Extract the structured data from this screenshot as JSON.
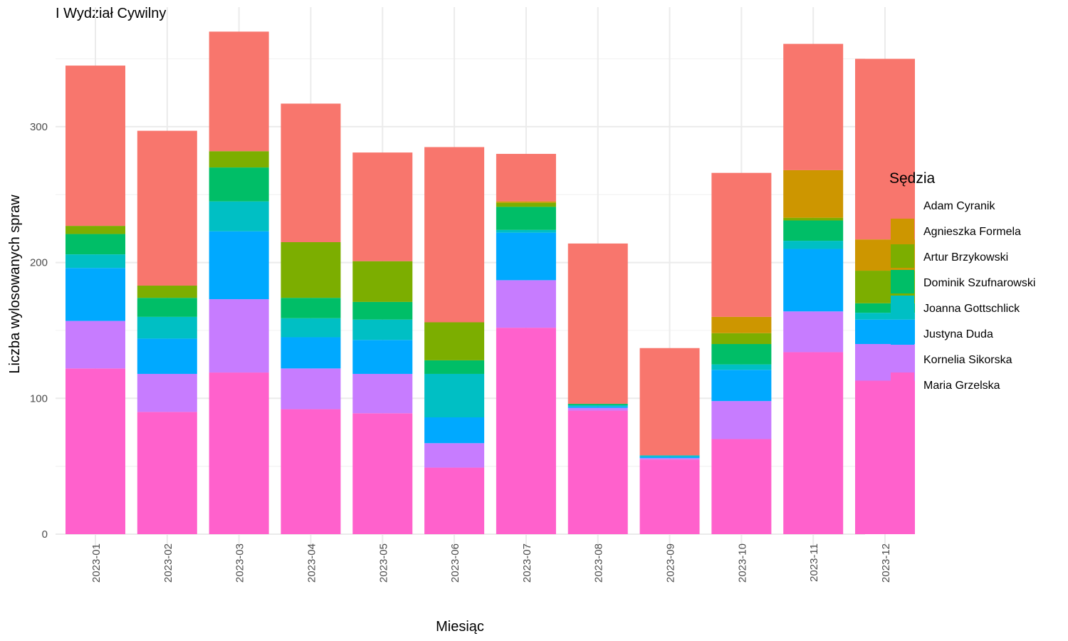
{
  "chart_data": {
    "type": "bar",
    "stacked": true,
    "title": "I Wydział Cywilny",
    "xlabel": "Miesiąc",
    "ylabel": "Liczba wylosowanych spraw",
    "ylim": [
      0,
      380
    ],
    "yticks": [
      0,
      100,
      200,
      300
    ],
    "grid": true,
    "legend_title": "Sędzia",
    "legend_position": "right",
    "categories": [
      "2023-01",
      "2023-02",
      "2023-03",
      "2023-04",
      "2023-05",
      "2023-06",
      "2023-07",
      "2023-08",
      "2023-09",
      "2023-10",
      "2023-11",
      "2023-12"
    ],
    "series": [
      {
        "name": "Maria Grzelska",
        "color": "#FF61CC",
        "values": [
          122,
          90,
          119,
          92,
          89,
          49,
          152,
          91,
          55,
          70,
          134,
          113
        ]
      },
      {
        "name": "Kornelia Sikorska",
        "color": "#C77CFF",
        "values": [
          35,
          28,
          54,
          30,
          29,
          18,
          35,
          2,
          1,
          28,
          30,
          27
        ]
      },
      {
        "name": "Justyna Duda",
        "color": "#00A9FF",
        "values": [
          39,
          26,
          50,
          23,
          25,
          19,
          35,
          1,
          1,
          23,
          46,
          18
        ]
      },
      {
        "name": "Joanna Gottschlick",
        "color": "#00BFC4",
        "values": [
          10,
          16,
          22,
          14,
          15,
          32,
          2,
          1,
          1,
          4,
          6,
          5
        ]
      },
      {
        "name": "Dominik Szufnarowski",
        "color": "#00BE67",
        "values": [
          15,
          14,
          25,
          15,
          13,
          10,
          17,
          1,
          0,
          15,
          15,
          7
        ]
      },
      {
        "name": "Artur Brzykowski",
        "color": "#7CAE00",
        "values": [
          6,
          9,
          12,
          41,
          30,
          28,
          3,
          0,
          0,
          8,
          2,
          24
        ]
      },
      {
        "name": "Agnieszka Formela",
        "color": "#CD9600",
        "values": [
          0,
          0,
          0,
          0,
          0,
          0,
          1,
          0,
          0,
          12,
          35,
          23
        ]
      },
      {
        "name": "Adam Cyranik",
        "color": "#F8766D",
        "values": [
          118,
          114,
          88,
          102,
          80,
          129,
          35,
          118,
          79,
          106,
          93,
          133
        ]
      }
    ],
    "legend_order": [
      "Adam Cyranik",
      "Agnieszka Formela",
      "Artur Brzykowski",
      "Dominik Szufnarowski",
      "Joanna Gottschlick",
      "Justyna Duda",
      "Kornelia Sikorska",
      "Maria Grzelska"
    ]
  }
}
